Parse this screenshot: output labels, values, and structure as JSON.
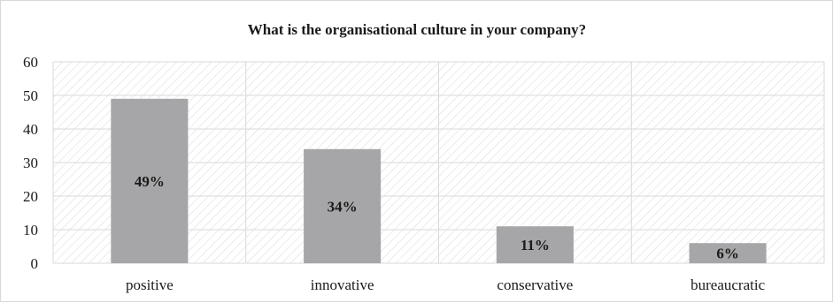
{
  "chart_data": {
    "type": "bar",
    "title": "What is the organisational culture in your company?",
    "categories": [
      "positive",
      "innovative",
      "conservative",
      "bureaucratic"
    ],
    "values": [
      49,
      34,
      11,
      6
    ],
    "data_labels": [
      "49%",
      "34%",
      "11%",
      "6%"
    ],
    "ylim": [
      0,
      60
    ],
    "yticks": [
      0,
      10,
      20,
      30,
      40,
      50,
      60
    ],
    "grid": true,
    "legend": "none",
    "colors": {
      "bar": "#a6a6a8",
      "grid": "#d9d9d9",
      "hatch": "#d9d9d9"
    }
  }
}
